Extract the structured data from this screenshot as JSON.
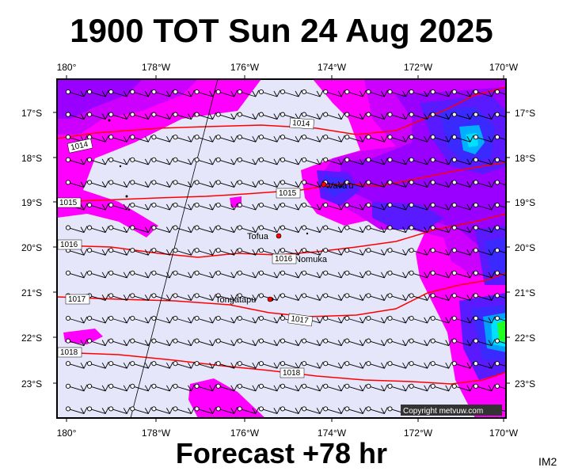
{
  "header": {
    "title": "1900 TOT Sun 24 Aug 2025"
  },
  "footer": {
    "forecast": "Forecast +78 hr",
    "code": "IM2"
  },
  "map": {
    "lon_labels": [
      "180°",
      "178°W",
      "176°W",
      "174°W",
      "172°W",
      "170°W"
    ],
    "lat_labels": [
      "17°S",
      "18°S",
      "19°S",
      "20°S",
      "21°S",
      "22°S",
      "23°S"
    ],
    "places": [
      "Vava'u",
      "Tofua",
      "Nomuka",
      "Tongatapu"
    ],
    "isobar_labels": [
      "1014",
      "1014",
      "1015",
      "1015",
      "1016",
      "1016",
      "1017",
      "1017",
      "1018",
      "1018"
    ],
    "copyright": "Copyright metvuw.com",
    "colors": {
      "background": "#e6e6fa",
      "magenta": "#ff00ff",
      "purple": "#9a00ff",
      "blue": "#3a2aff",
      "cyan": "#00e0ff",
      "green": "#22ff22",
      "isobar": "#ff0000"
    }
  }
}
